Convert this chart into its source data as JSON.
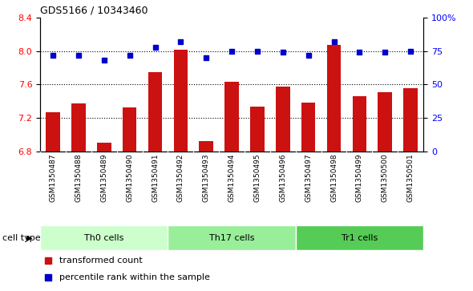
{
  "title": "GDS5166 / 10343460",
  "samples": [
    "GSM1350487",
    "GSM1350488",
    "GSM1350489",
    "GSM1350490",
    "GSM1350491",
    "GSM1350492",
    "GSM1350493",
    "GSM1350494",
    "GSM1350495",
    "GSM1350496",
    "GSM1350497",
    "GSM1350498",
    "GSM1350499",
    "GSM1350500",
    "GSM1350501"
  ],
  "bar_values": [
    7.27,
    7.37,
    6.9,
    7.32,
    7.75,
    8.01,
    6.92,
    7.63,
    7.33,
    7.57,
    7.38,
    8.07,
    7.46,
    7.51,
    7.55
  ],
  "dot_values": [
    72,
    72,
    68,
    72,
    78,
    82,
    70,
    75,
    75,
    74,
    72,
    82,
    74,
    74,
    75
  ],
  "cell_types": [
    {
      "label": "Th0 cells",
      "start": 0,
      "end": 5,
      "color": "#ccffcc"
    },
    {
      "label": "Th17 cells",
      "start": 5,
      "end": 10,
      "color": "#99ee99"
    },
    {
      "label": "Tr1 cells",
      "start": 10,
      "end": 15,
      "color": "#55cc55"
    }
  ],
  "bar_color": "#cc1111",
  "dot_color": "#0000cc",
  "ylim_left": [
    6.8,
    8.4
  ],
  "ylim_right": [
    0,
    100
  ],
  "yticks_left": [
    6.8,
    7.2,
    7.6,
    8.0,
    8.4
  ],
  "yticks_right": [
    0,
    25,
    50,
    75,
    100
  ],
  "dotted_lines": [
    8.0,
    7.6,
    7.2
  ],
  "cell_type_label": "cell type",
  "legend_bar": "transformed count",
  "legend_dot": "percentile rank within the sample",
  "label_bg_color": "#cccccc",
  "label_divider_color": "#ffffff"
}
